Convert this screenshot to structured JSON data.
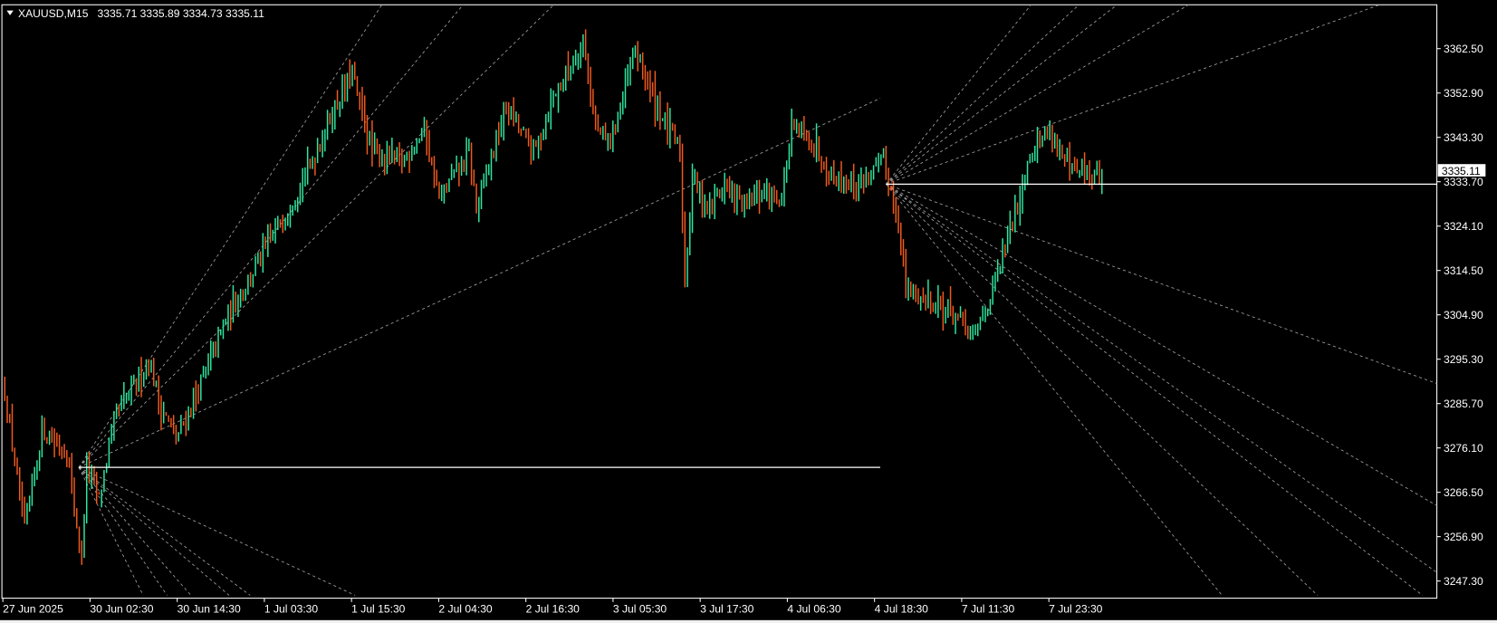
{
  "header": {
    "symbol_timeframe": "XAUUSD,M15",
    "ohlc": "3335.71 3335.89 3334.73 3335.11",
    "menu_icon": "triangle-down-icon"
  },
  "current_price_label": "3335.11",
  "colors": {
    "background": "#000000",
    "bull_bar": "#2ee8a0",
    "bear_bar": "#f05a1e",
    "grid_fg": "#ffffff",
    "fan_line": "#a0a0a0"
  },
  "chart_data": {
    "type": "bar",
    "symbol": "XAUUSD",
    "timeframe": "M15",
    "current_price": 3335.11,
    "ylim": [
      3242,
      3370
    ],
    "y_ticks": [
      "3362.50",
      "3352.90",
      "3343.30",
      "3333.70",
      "3324.10",
      "3314.50",
      "3304.90",
      "3295.30",
      "3285.70",
      "3276.10",
      "3266.50",
      "3256.90",
      "3247.30"
    ],
    "x_ticks": [
      "27 Jun 2025",
      "30 Jun 02:30",
      "30 Jun 14:30",
      "1 Jul 03:30",
      "1 Jul 15:30",
      "2 Jul 04:30",
      "2 Jul 16:30",
      "3 Jul 05:30",
      "3 Jul 17:30",
      "4 Jul 06:30",
      "4 Jul 18:30",
      "7 Jul 11:30",
      "7 Jul 23:30"
    ],
    "bar_count": 443,
    "price_path": [
      [
        0,
        3288
      ],
      [
        8,
        3258
      ],
      [
        15,
        3280
      ],
      [
        25,
        3275
      ],
      [
        31,
        3252
      ],
      [
        33,
        3272
      ],
      [
        38,
        3265
      ],
      [
        44,
        3282
      ],
      [
        58,
        3295
      ],
      [
        63,
        3285
      ],
      [
        69,
        3278
      ],
      [
        79,
        3290
      ],
      [
        90,
        3305
      ],
      [
        106,
        3320
      ],
      [
        121,
        3335
      ],
      [
        133,
        3350
      ],
      [
        140,
        3357
      ],
      [
        148,
        3340
      ],
      [
        160,
        3338
      ],
      [
        169,
        3345
      ],
      [
        175,
        3330
      ],
      [
        187,
        3340
      ],
      [
        190,
        3328
      ],
      [
        202,
        3350
      ],
      [
        213,
        3340
      ],
      [
        221,
        3352
      ],
      [
        229,
        3360
      ],
      [
        233,
        3365
      ],
      [
        238,
        3345
      ],
      [
        244,
        3342
      ],
      [
        254,
        3362
      ],
      [
        263,
        3350
      ],
      [
        272,
        3340
      ],
      [
        274,
        3312
      ],
      [
        277,
        3335
      ],
      [
        283,
        3328
      ],
      [
        290,
        3333
      ],
      [
        298,
        3328
      ],
      [
        306,
        3332
      ],
      [
        313,
        3330
      ],
      [
        317,
        3345
      ],
      [
        325,
        3343
      ],
      [
        333,
        3335
      ],
      [
        344,
        3333
      ],
      [
        354,
        3338
      ],
      [
        360,
        3325
      ],
      [
        363,
        3310
      ],
      [
        373,
        3308
      ],
      [
        383,
        3305
      ],
      [
        390,
        3300
      ],
      [
        398,
        3310
      ],
      [
        406,
        3325
      ],
      [
        413,
        3340
      ],
      [
        421,
        3345
      ],
      [
        429,
        3336
      ],
      [
        437,
        3335
      ],
      [
        442,
        3335.11
      ]
    ],
    "horizontal_levels": [
      3271.9,
      3333.2
    ],
    "grid": false
  }
}
